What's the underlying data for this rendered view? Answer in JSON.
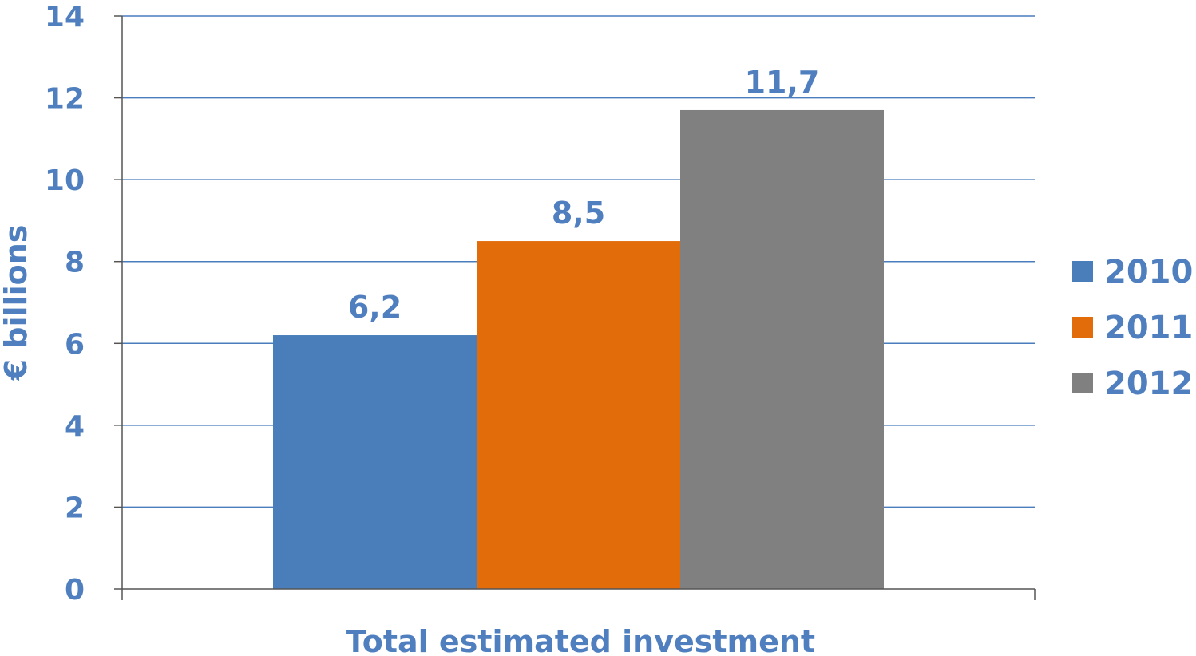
{
  "chart_data": {
    "type": "bar",
    "categories": [
      "Total estimated investment"
    ],
    "series": [
      {
        "name": "2010",
        "values": [
          6.2
        ],
        "label": "6,2",
        "color": "#4a7ebb"
      },
      {
        "name": "2011",
        "values": [
          8.5
        ],
        "label": "8,5",
        "color": "#e26b0a"
      },
      {
        "name": "2012",
        "values": [
          11.7
        ],
        "label": "11,7",
        "color": "#808080"
      }
    ],
    "xlabel": "Total estimated investment",
    "ylabel": "€ billions",
    "ylim": [
      0,
      14
    ],
    "yticks": [
      0,
      2,
      4,
      6,
      8,
      10,
      12,
      14
    ],
    "grid": true,
    "legend_position": "right"
  }
}
